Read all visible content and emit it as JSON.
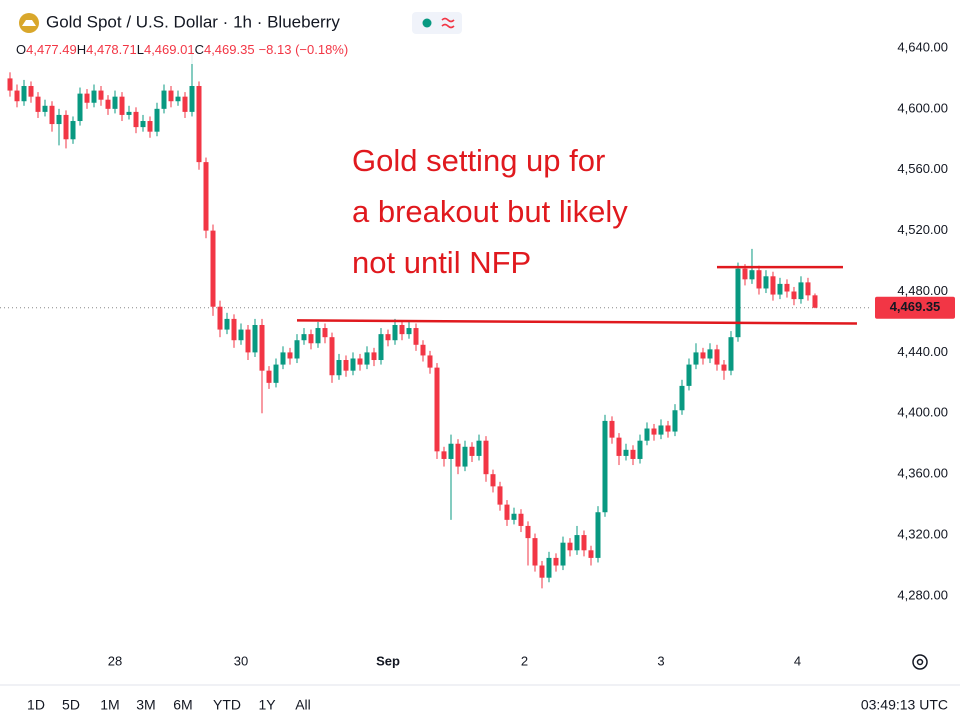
{
  "header": {
    "title": "Gold Spot / U.S. Dollar · 1h · Blueberry",
    "ohlc": [
      {
        "key": "O",
        "value": "4,477.49"
      },
      {
        "key": "H",
        "value": "4,478.71"
      },
      {
        "key": "L",
        "value": "4,469.01"
      },
      {
        "key": "C",
        "value": "4,469.35"
      }
    ],
    "change": "−8.13 (−0.18%)"
  },
  "chart_data": {
    "type": "candlestick",
    "up_color": "#089981",
    "down_color": "#f23645",
    "annotation": [
      "Gold setting up for",
      "a breakout but likely",
      "not until NFP"
    ],
    "annotation_color": "#e0191e",
    "trendlines": [
      {
        "x": [
          41,
          121
        ],
        "y": [
          4461,
          4459
        ]
      },
      {
        "x": [
          101,
          119
        ],
        "y": [
          4496,
          4496
        ]
      }
    ],
    "last_price": {
      "value": 4469.35,
      "label": "4,469.35"
    },
    "xlim": [
      -1.43,
      122.86
    ],
    "ylim": [
      4244.5,
      4671.5
    ],
    "grid": false,
    "xticks": [
      {
        "value": 15,
        "label": "28"
      },
      {
        "value": 33,
        "label": "30"
      },
      {
        "value": 54,
        "label": "Sep"
      },
      {
        "value": 73.5,
        "label": "2"
      },
      {
        "value": 93,
        "label": "3"
      },
      {
        "value": 112.5,
        "label": "4"
      }
    ],
    "yticks": [
      {
        "value": 4280,
        "label": "4,280.00"
      },
      {
        "value": 4320,
        "label": "4,320.00"
      },
      {
        "value": 4360,
        "label": "4,360.00"
      },
      {
        "value": 4400,
        "label": "4,400.00"
      },
      {
        "value": 4440,
        "label": "4,440.00"
      },
      {
        "value": 4480,
        "label": "4,480.00"
      },
      {
        "value": 4520,
        "label": "4,520.00"
      },
      {
        "value": 4560,
        "label": "4,560.00"
      },
      {
        "value": 4600,
        "label": "4,600.00"
      },
      {
        "value": 4640,
        "label": "4,640.00"
      }
    ],
    "candles": [
      [
        4620,
        4624,
        4608,
        4612
      ],
      [
        4612,
        4616,
        4601,
        4605
      ],
      [
        4605,
        4619,
        4602,
        4615
      ],
      [
        4615,
        4618,
        4604,
        4608
      ],
      [
        4608,
        4611,
        4594,
        4598
      ],
      [
        4598,
        4606,
        4595,
        4602
      ],
      [
        4602,
        4605,
        4585,
        4590
      ],
      [
        4590,
        4600,
        4576,
        4596
      ],
      [
        4596,
        4599,
        4574,
        4580
      ],
      [
        4580,
        4595,
        4577,
        4592
      ],
      [
        4592,
        4614,
        4589,
        4610
      ],
      [
        4610,
        4613,
        4600,
        4604
      ],
      [
        4604,
        4616,
        4601,
        4612
      ],
      [
        4612,
        4615,
        4602,
        4606
      ],
      [
        4606,
        4609,
        4596,
        4600
      ],
      [
        4600,
        4612,
        4597,
        4608
      ],
      [
        4608,
        4611,
        4592,
        4596
      ],
      [
        4596,
        4602,
        4593,
        4598
      ],
      [
        4598,
        4601,
        4584,
        4588
      ],
      [
        4588,
        4596,
        4585,
        4592
      ],
      [
        4592,
        4595,
        4581,
        4585
      ],
      [
        4585,
        4604,
        4582,
        4600
      ],
      [
        4600,
        4616,
        4597,
        4612
      ],
      [
        4612,
        4615,
        4601,
        4605
      ],
      [
        4605,
        4612,
        4602,
        4608
      ],
      [
        4608,
        4611,
        4594,
        4598
      ],
      [
        4598,
        4638,
        4595,
        4615
      ],
      [
        4615,
        4618,
        4560,
        4565
      ],
      [
        4565,
        4568,
        4515,
        4520
      ],
      [
        4520,
        4524,
        4464,
        4470
      ],
      [
        4470,
        4474,
        4450,
        4455
      ],
      [
        4455,
        4466,
        4452,
        4462
      ],
      [
        4462,
        4465,
        4443,
        4448
      ],
      [
        4448,
        4459,
        4445,
        4455
      ],
      [
        4455,
        4458,
        4435,
        4440
      ],
      [
        4440,
        4462,
        4437,
        4458
      ],
      [
        4458,
        4462,
        4400,
        4428
      ],
      [
        4428,
        4431,
        4416,
        4420
      ],
      [
        4420,
        4436,
        4417,
        4432
      ],
      [
        4432,
        4444,
        4429,
        4440
      ],
      [
        4440,
        4443,
        4432,
        4436
      ],
      [
        4436,
        4452,
        4433,
        4448
      ],
      [
        4448,
        4456,
        4445,
        4452
      ],
      [
        4452,
        4455,
        4442,
        4446
      ],
      [
        4446,
        4460,
        4443,
        4456
      ],
      [
        4456,
        4459,
        4446,
        4450
      ],
      [
        4450,
        4453,
        4420,
        4425
      ],
      [
        4425,
        4439,
        4422,
        4435
      ],
      [
        4435,
        4438,
        4424,
        4428
      ],
      [
        4428,
        4440,
        4425,
        4436
      ],
      [
        4436,
        4439,
        4428,
        4432
      ],
      [
        4432,
        4444,
        4429,
        4440
      ],
      [
        4440,
        4443,
        4431,
        4435
      ],
      [
        4435,
        4456,
        4432,
        4452
      ],
      [
        4452,
        4455,
        4444,
        4448
      ],
      [
        4448,
        4462,
        4445,
        4458
      ],
      [
        4458,
        4461,
        4448,
        4452
      ],
      [
        4452,
        4460,
        4449,
        4456
      ],
      [
        4456,
        4459,
        4441,
        4445
      ],
      [
        4445,
        4448,
        4434,
        4438
      ],
      [
        4438,
        4441,
        4426,
        4430
      ],
      [
        4430,
        4433,
        4370,
        4375
      ],
      [
        4375,
        4378,
        4365,
        4370
      ],
      [
        4370,
        4386,
        4330,
        4380
      ],
      [
        4380,
        4383,
        4360,
        4365
      ],
      [
        4365,
        4382,
        4362,
        4378
      ],
      [
        4378,
        4381,
        4368,
        4372
      ],
      [
        4372,
        4386,
        4369,
        4382
      ],
      [
        4382,
        4385,
        4355,
        4360
      ],
      [
        4360,
        4363,
        4348,
        4352
      ],
      [
        4352,
        4355,
        4336,
        4340
      ],
      [
        4340,
        4343,
        4326,
        4330
      ],
      [
        4330,
        4338,
        4327,
        4334
      ],
      [
        4334,
        4337,
        4322,
        4326
      ],
      [
        4326,
        4329,
        4300,
        4318
      ],
      [
        4318,
        4321,
        4296,
        4300
      ],
      [
        4300,
        4303,
        4285,
        4292
      ],
      [
        4292,
        4309,
        4289,
        4305
      ],
      [
        4305,
        4308,
        4296,
        4300
      ],
      [
        4300,
        4319,
        4297,
        4315
      ],
      [
        4315,
        4318,
        4306,
        4310
      ],
      [
        4310,
        4326,
        4307,
        4320
      ],
      [
        4320,
        4323,
        4306,
        4310
      ],
      [
        4310,
        4313,
        4300,
        4305
      ],
      [
        4305,
        4339,
        4302,
        4335
      ],
      [
        4335,
        4399,
        4332,
        4395
      ],
      [
        4395,
        4398,
        4380,
        4384
      ],
      [
        4384,
        4387,
        4366,
        4372
      ],
      [
        4372,
        4380,
        4369,
        4376
      ],
      [
        4376,
        4379,
        4366,
        4370
      ],
      [
        4370,
        4386,
        4367,
        4382
      ],
      [
        4382,
        4394,
        4379,
        4390
      ],
      [
        4390,
        4393,
        4382,
        4386
      ],
      [
        4386,
        4396,
        4383,
        4392
      ],
      [
        4392,
        4395,
        4384,
        4388
      ],
      [
        4388,
        4406,
        4385,
        4402
      ],
      [
        4402,
        4422,
        4399,
        4418
      ],
      [
        4418,
        4436,
        4415,
        4432
      ],
      [
        4432,
        4446,
        4429,
        4440
      ],
      [
        4440,
        4443,
        4432,
        4436
      ],
      [
        4436,
        4446,
        4433,
        4442
      ],
      [
        4442,
        4445,
        4428,
        4432
      ],
      [
        4432,
        4435,
        4422,
        4428
      ],
      [
        4428,
        4454,
        4425,
        4450
      ],
      [
        4450,
        4499,
        4447,
        4495
      ],
      [
        4495,
        4498,
        4484,
        4488
      ],
      [
        4488,
        4508,
        4485,
        4494
      ],
      [
        4494,
        4497,
        4478,
        4482
      ],
      [
        4482,
        4494,
        4479,
        4490
      ],
      [
        4490,
        4493,
        4474,
        4478
      ],
      [
        4478,
        4489,
        4475,
        4485
      ],
      [
        4485,
        4488,
        4476,
        4480
      ],
      [
        4480,
        4483,
        4471,
        4475
      ],
      [
        4475,
        4490,
        4472,
        4486
      ],
      [
        4486,
        4489,
        4474,
        4477.49
      ],
      [
        4477.49,
        4478.71,
        4469.01,
        4469.35
      ]
    ]
  },
  "footer": {
    "ranges": [
      "1D",
      "5D",
      "1M",
      "3M",
      "6M",
      "YTD",
      "1Y",
      "All"
    ],
    "time": "03:49:13 UTC"
  }
}
